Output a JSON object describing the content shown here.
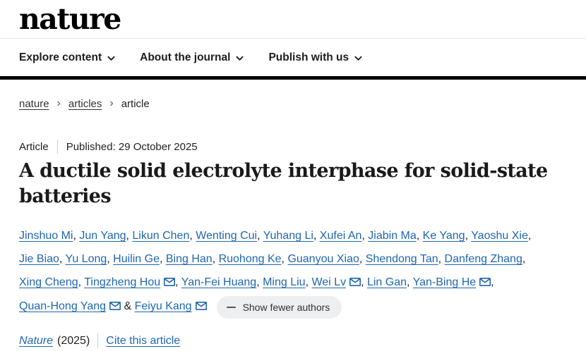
{
  "logo": {
    "text": "nature"
  },
  "nav": {
    "items": [
      {
        "label": "Explore content"
      },
      {
        "label": "About the journal"
      },
      {
        "label": "Publish with us"
      }
    ]
  },
  "breadcrumb": {
    "separator": "›",
    "items": [
      {
        "label": "nature"
      },
      {
        "label": "articles"
      },
      {
        "label": "article"
      }
    ]
  },
  "article": {
    "type_label": "Article",
    "published": "Published: 29 October 2025",
    "title": "A ductile solid electrolyte interphase for solid-state batteries",
    "authors": [
      {
        "name": "Jinshuo Mi"
      },
      {
        "name": "Jun Yang"
      },
      {
        "name": "Likun Chen"
      },
      {
        "name": "Wenting Cui"
      },
      {
        "name": "Yuhang Li"
      },
      {
        "name": "Xufei An"
      },
      {
        "name": "Jiabin Ma"
      },
      {
        "name": "Ke Yang"
      },
      {
        "name": "Yaoshu Xie"
      },
      {
        "name": "Jie Biao"
      },
      {
        "name": "Yu Long"
      },
      {
        "name": "Huilin Ge"
      },
      {
        "name": "Bing Han"
      },
      {
        "name": "Ruohong Ke"
      },
      {
        "name": "Guanyou Xiao"
      },
      {
        "name": "Shendong Tan"
      },
      {
        "name": "Danfeng Zhang"
      },
      {
        "name": "Xing Cheng"
      },
      {
        "name": "Tingzheng Hou",
        "email": true
      },
      {
        "name": "Yan-Fei Huang"
      },
      {
        "name": "Ming Liu"
      },
      {
        "name": "Wei Lv",
        "email": true
      },
      {
        "name": "Lin Gan"
      },
      {
        "name": "Yan-Bing He",
        "email": true
      },
      {
        "name": "Quan-Hong Yang",
        "email": true
      },
      {
        "name": "Feiyu Kang",
        "email": true
      }
    ],
    "show_fewer_label": "Show fewer authors",
    "journal": "Nature",
    "year": "(2025)",
    "cite_label": "Cite this article"
  },
  "colors": {
    "link_blue": "#1f66b0",
    "header_bar": "#000000",
    "pill_background": "#edeff1",
    "divider": "#c5d1da"
  }
}
